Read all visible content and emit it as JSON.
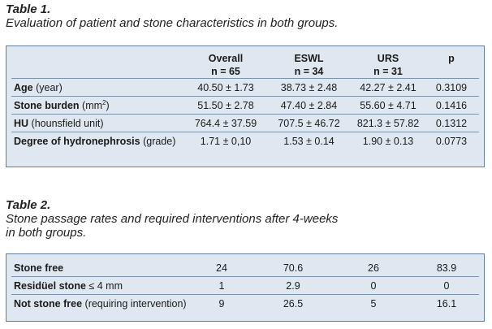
{
  "table1": {
    "number": "Table 1.",
    "caption": "Evaluation of patient and stone characteristics in both groups.",
    "columns": [
      {
        "name": "Overall",
        "n": "n = 65"
      },
      {
        "name": "ESWL",
        "n": "n = 34"
      },
      {
        "name": "URS",
        "n": "n = 31"
      },
      {
        "name": "p",
        "n": ""
      }
    ],
    "rows": [
      {
        "label": "Age",
        "unit": "(year)",
        "values": [
          "40.50 ± 1.73",
          "38.73 ± 2.48",
          "42.27 ± 2.41",
          "0.3109"
        ]
      },
      {
        "label": "Stone burden",
        "unit": "(mm",
        "unit_sup": "2",
        "unit_end": ")",
        "values": [
          "51.50 ± 2.78",
          "47.40 ± 2.84",
          "55.60 ± 4.71",
          "0.1416"
        ]
      },
      {
        "label": "HU",
        "unit": "(hounsfield unit)",
        "values": [
          "764.4 ± 37.59",
          "707.5 ± 46.72",
          "821.3 ± 57.82",
          "0.1312"
        ]
      },
      {
        "label": "Degree of hydronephrosis",
        "unit": "(grade)",
        "values": [
          "1.71 ± 0,10",
          "1.53 ± 0.14",
          "1.90 ± 0.13",
          "0.0773"
        ]
      }
    ]
  },
  "table2": {
    "number": "Table 2.",
    "caption_line1": "Stone passage rates and required interventions after 4-weeks",
    "caption_line2": "in both groups.",
    "rows": [
      {
        "label": "Stone free",
        "unit": "",
        "values": [
          "24",
          "70.6",
          "26",
          "83.9"
        ]
      },
      {
        "label": "Residüel stone",
        "unit": "≤ 4 mm",
        "values": [
          "1",
          "2.9",
          "0",
          "0"
        ]
      },
      {
        "label": "Not stone free",
        "unit": "(requiring intervention)",
        "values": [
          "9",
          "26.5",
          "5",
          "16.1"
        ]
      }
    ]
  }
}
